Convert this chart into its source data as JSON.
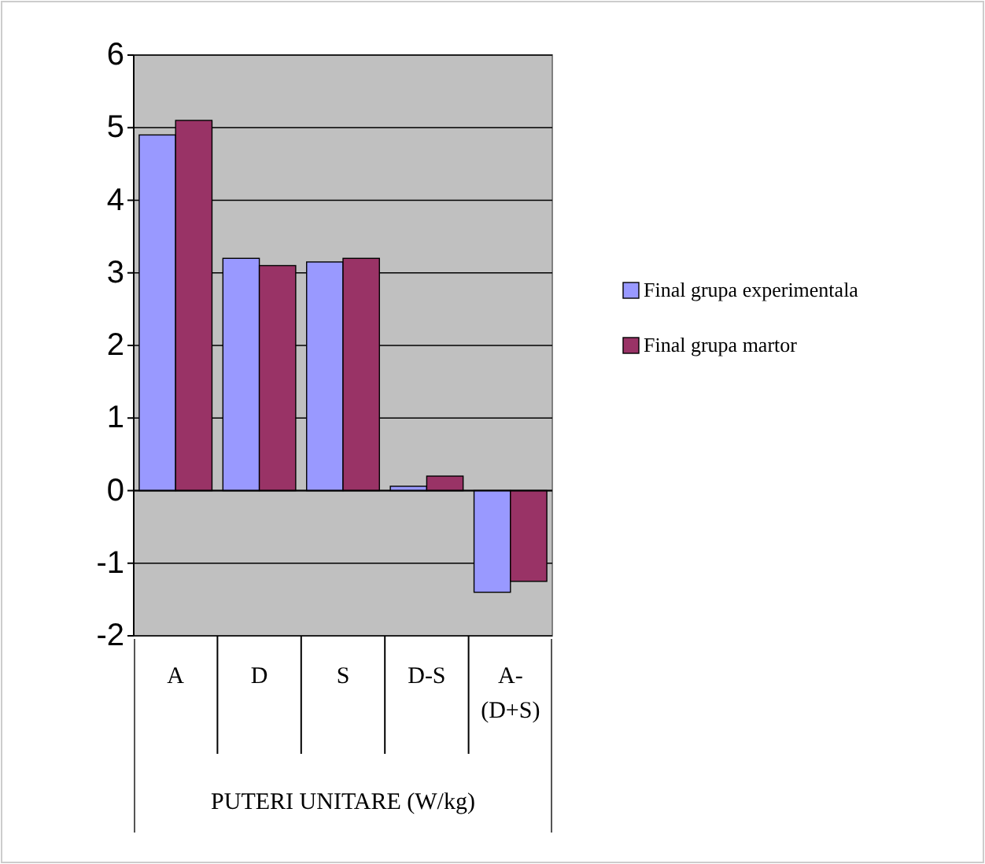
{
  "chart_data": {
    "type": "bar",
    "categories": [
      "A",
      "D",
      "S",
      "D-S",
      "A-(D+S)"
    ],
    "xlabel": "PUTERI UNITARE (W/kg)",
    "series": [
      {
        "name": "Final grupa experimentala",
        "color": "#9999ff",
        "values": [
          4.9,
          3.2,
          3.15,
          0.06,
          -1.4
        ]
      },
      {
        "name": "Final grupa martor",
        "color": "#993366",
        "values": [
          5.1,
          3.1,
          3.2,
          0.2,
          -1.25
        ]
      }
    ],
    "ylim": [
      -2,
      6
    ],
    "yticks": [
      -2,
      -1,
      0,
      1,
      2,
      3,
      4,
      5,
      6
    ],
    "grid": "y",
    "legend": "right"
  }
}
